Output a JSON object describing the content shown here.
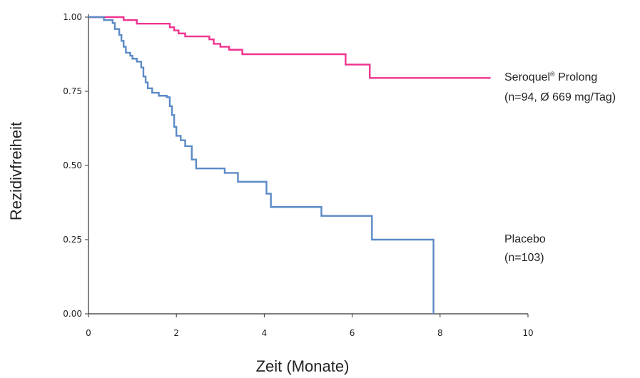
{
  "chart_data": {
    "type": "line",
    "xlabel": "Zeit (Monate)",
    "ylabel": "Rezidivfreiheit",
    "xlim": [
      0,
      10
    ],
    "ylim": [
      0,
      1
    ],
    "x_ticks": [
      0,
      2,
      4,
      6,
      8,
      10
    ],
    "x_tick_labels": [
      "0",
      "2",
      "4",
      "6",
      "8",
      "10"
    ],
    "y_ticks": [
      0,
      0.25,
      0.5,
      0.75,
      1.0
    ],
    "y_tick_labels": [
      "0.00",
      "0.25",
      "0.50",
      "0.75",
      "1.00"
    ],
    "grid": false,
    "legend_placement": "right, beside line ends",
    "series": [
      {
        "name": "Seroquel® Prolong",
        "label_lines": [
          "Seroquel",
          "®",
          " Prolong",
          "(n=94, Ø 669 mg/Tag)"
        ],
        "color": "#f0338f",
        "step": true,
        "points": [
          [
            0,
            1.0
          ],
          [
            0.8,
            0.99
          ],
          [
            1.1,
            0.978
          ],
          [
            1.85,
            0.966
          ],
          [
            1.95,
            0.955
          ],
          [
            2.05,
            0.945
          ],
          [
            2.2,
            0.935
          ],
          [
            2.75,
            0.925
          ],
          [
            2.85,
            0.91
          ],
          [
            3.0,
            0.9
          ],
          [
            3.2,
            0.89
          ],
          [
            3.5,
            0.875
          ],
          [
            5.85,
            0.84
          ],
          [
            6.4,
            0.795
          ],
          [
            9.15,
            0.795
          ]
        ]
      },
      {
        "name": "Placebo",
        "label_lines": [
          "Placebo",
          "(n=103)"
        ],
        "color": "#5b8ac6",
        "step": true,
        "points": [
          [
            0,
            1.0
          ],
          [
            0.35,
            0.99
          ],
          [
            0.55,
            0.98
          ],
          [
            0.6,
            0.96
          ],
          [
            0.7,
            0.94
          ],
          [
            0.75,
            0.92
          ],
          [
            0.8,
            0.9
          ],
          [
            0.85,
            0.88
          ],
          [
            0.95,
            0.87
          ],
          [
            1.0,
            0.86
          ],
          [
            1.1,
            0.85
          ],
          [
            1.2,
            0.83
          ],
          [
            1.25,
            0.8
          ],
          [
            1.3,
            0.78
          ],
          [
            1.35,
            0.76
          ],
          [
            1.45,
            0.745
          ],
          [
            1.6,
            0.735
          ],
          [
            1.78,
            0.73
          ],
          [
            1.85,
            0.7
          ],
          [
            1.9,
            0.67
          ],
          [
            1.95,
            0.63
          ],
          [
            2.0,
            0.6
          ],
          [
            2.1,
            0.585
          ],
          [
            2.2,
            0.565
          ],
          [
            2.35,
            0.52
          ],
          [
            2.45,
            0.49
          ],
          [
            3.1,
            0.475
          ],
          [
            3.4,
            0.445
          ],
          [
            4.05,
            0.405
          ],
          [
            4.15,
            0.36
          ],
          [
            5.3,
            0.33
          ],
          [
            6.45,
            0.25
          ],
          [
            7.85,
            0.0
          ]
        ]
      }
    ]
  }
}
